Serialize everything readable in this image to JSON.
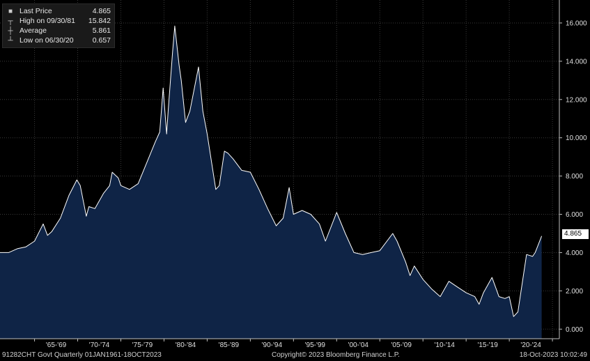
{
  "legend": {
    "items": [
      {
        "label": "Last Price",
        "value": "4.865",
        "icon": "filled-square-icon"
      },
      {
        "label": "High on 09/30/81",
        "value": "15.842",
        "icon": "high-marker-icon"
      },
      {
        "label": "Average",
        "value": "5.861",
        "icon": "average-marker-icon"
      },
      {
        "label": "Low on 06/30/20",
        "value": "0.657",
        "icon": "low-marker-icon"
      }
    ]
  },
  "last_price_tag": "4.865",
  "footer": {
    "ticker": "91282CHT Govt  Quarterly 01JAN1961-18OCT2023",
    "copyright": "Copyright© 2023 Bloomberg Finance L.P.",
    "timestamp": "18-Oct-2023 10:02:49"
  },
  "colors": {
    "background": "#000000",
    "area_fill": "#0f2446",
    "line": "#ffffff",
    "grid": "#3a3a3a"
  },
  "chart_data": {
    "type": "area",
    "y_ticks": [
      "0.000",
      "2.000",
      "4.000",
      "6.000",
      "8.000",
      "10.000",
      "12.000",
      "14.000",
      "16.000"
    ],
    "ylim": [
      -0.5,
      17.2
    ],
    "x_ticks": [
      "'65-'69",
      "'70-'74",
      "'75-'79",
      "'80-'84",
      "'85-'89",
      "'90-'94",
      "'95-'99",
      "'00-'04",
      "'05-'09",
      "'10-'14",
      "'15-'19",
      "'20-'24"
    ],
    "xlim": [
      1961.0,
      2025.8
    ],
    "grid": true,
    "legend_position": "top-left",
    "series": [
      {
        "x": [
          1961.0,
          1962.0,
          1963.0,
          1964.0,
          1965.0,
          1966.0,
          1966.5,
          1967.0,
          1968.0,
          1969.0,
          1969.9,
          1970.3,
          1971.0,
          1971.3,
          1972.0,
          1973.0,
          1973.7,
          1974.0,
          1974.7,
          1975.0,
          1976.0,
          1977.0,
          1978.0,
          1979.0,
          1979.5,
          1979.9,
          1980.3,
          1980.5,
          1981.0,
          1981.25,
          1981.75,
          1982.0,
          1982.5,
          1983.0,
          1984.0,
          1984.5,
          1985.0,
          1986.0,
          1986.4,
          1987.0,
          1987.4,
          1988.0,
          1989.0,
          1990.0,
          1991.0,
          1992.0,
          1993.0,
          1993.8,
          1994.5,
          1995.0,
          1996.0,
          1997.0,
          1998.0,
          1998.7,
          2000.0,
          2001.0,
          2002.0,
          2003.0,
          2004.0,
          2005.0,
          2006.5,
          2007.0,
          2008.0,
          2008.5,
          2009.0,
          2010.0,
          2011.0,
          2012.0,
          2013.0,
          2014.0,
          2015.0,
          2016.0,
          2016.5,
          2017.0,
          2018.0,
          2018.8,
          2019.5,
          2020.0,
          2020.5,
          2021.0,
          2022.0,
          2022.7,
          2023.0,
          2023.75
        ],
        "values": [
          4.0,
          4.0,
          4.2,
          4.3,
          4.6,
          5.5,
          4.9,
          5.1,
          5.8,
          7.0,
          7.8,
          7.5,
          5.9,
          6.4,
          6.3,
          7.1,
          7.5,
          8.2,
          7.9,
          7.5,
          7.3,
          7.6,
          8.7,
          9.8,
          10.3,
          12.6,
          10.2,
          11.5,
          14.5,
          15.842,
          13.8,
          13.0,
          10.8,
          11.4,
          13.7,
          11.4,
          10.2,
          7.3,
          7.5,
          9.3,
          9.2,
          8.9,
          8.3,
          8.2,
          7.3,
          6.3,
          5.4,
          5.8,
          7.4,
          6.0,
          6.2,
          6.0,
          5.5,
          4.6,
          6.1,
          5.0,
          4.0,
          3.9,
          4.0,
          4.1,
          5.0,
          4.6,
          3.5,
          2.8,
          3.3,
          2.6,
          2.1,
          1.7,
          2.5,
          2.2,
          1.9,
          1.7,
          1.3,
          1.9,
          2.7,
          1.7,
          1.6,
          1.7,
          0.657,
          0.9,
          3.9,
          3.8,
          4.0,
          4.865
        ]
      }
    ]
  }
}
